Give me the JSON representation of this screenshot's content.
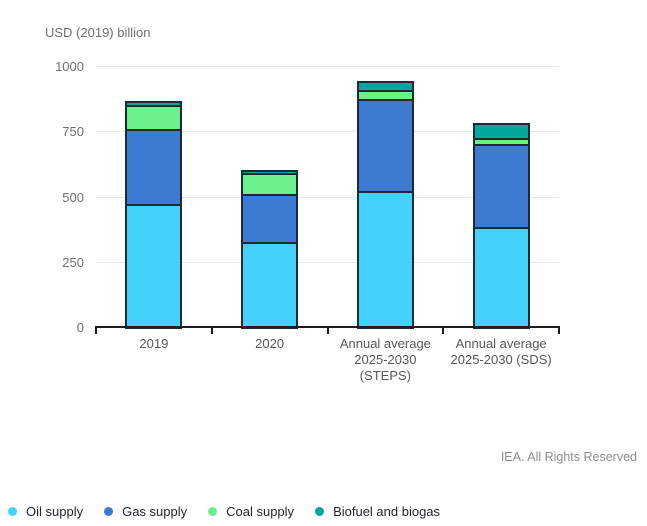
{
  "header": {
    "axis_unit_label": "USD (2019) billion"
  },
  "footer": {
    "credit": "IEA. All Rights Reserved"
  },
  "colors": {
    "oil": "#45D2FA",
    "gas": "#3D7AD2",
    "coal": "#6CF08E",
    "biofuel": "#00A79E",
    "segment_border": "#1C2B33",
    "gridline": "#E7E8E9",
    "axis": "#1D1D1F"
  },
  "chart_data": {
    "type": "bar",
    "stacked": true,
    "title": "USD (2019) billion",
    "xlabel": "",
    "ylabel": "USD (2019) billion",
    "ylim": [
      0,
      1000
    ],
    "yticks": [
      0,
      250,
      500,
      750,
      1000
    ],
    "grid": true,
    "legend_position": "bottom-left",
    "categories": [
      "2019",
      "2020",
      "Annual average 2025-2030 (STEPS)",
      "Annual average 2025-2030 (SDS)"
    ],
    "category_label_lines": [
      [
        "2019"
      ],
      [
        "2020"
      ],
      [
        "Annual average",
        "2025-2030",
        "(STEPS)"
      ],
      [
        "Annual average",
        "2025-2030 (SDS)"
      ]
    ],
    "series": [
      {
        "name": "Oil supply",
        "color": "#45D2FA",
        "values": [
          470,
          325,
          520,
          385
        ]
      },
      {
        "name": "Gas supply",
        "color": "#3D7AD2",
        "values": [
          290,
          185,
          355,
          317
        ]
      },
      {
        "name": "Coal supply",
        "color": "#6CF08E",
        "values": [
          90,
          80,
          32,
          23
        ]
      },
      {
        "name": "Biofuel and biogas",
        "color": "#00A79E",
        "values": [
          7,
          5,
          27,
          50
        ]
      }
    ]
  }
}
